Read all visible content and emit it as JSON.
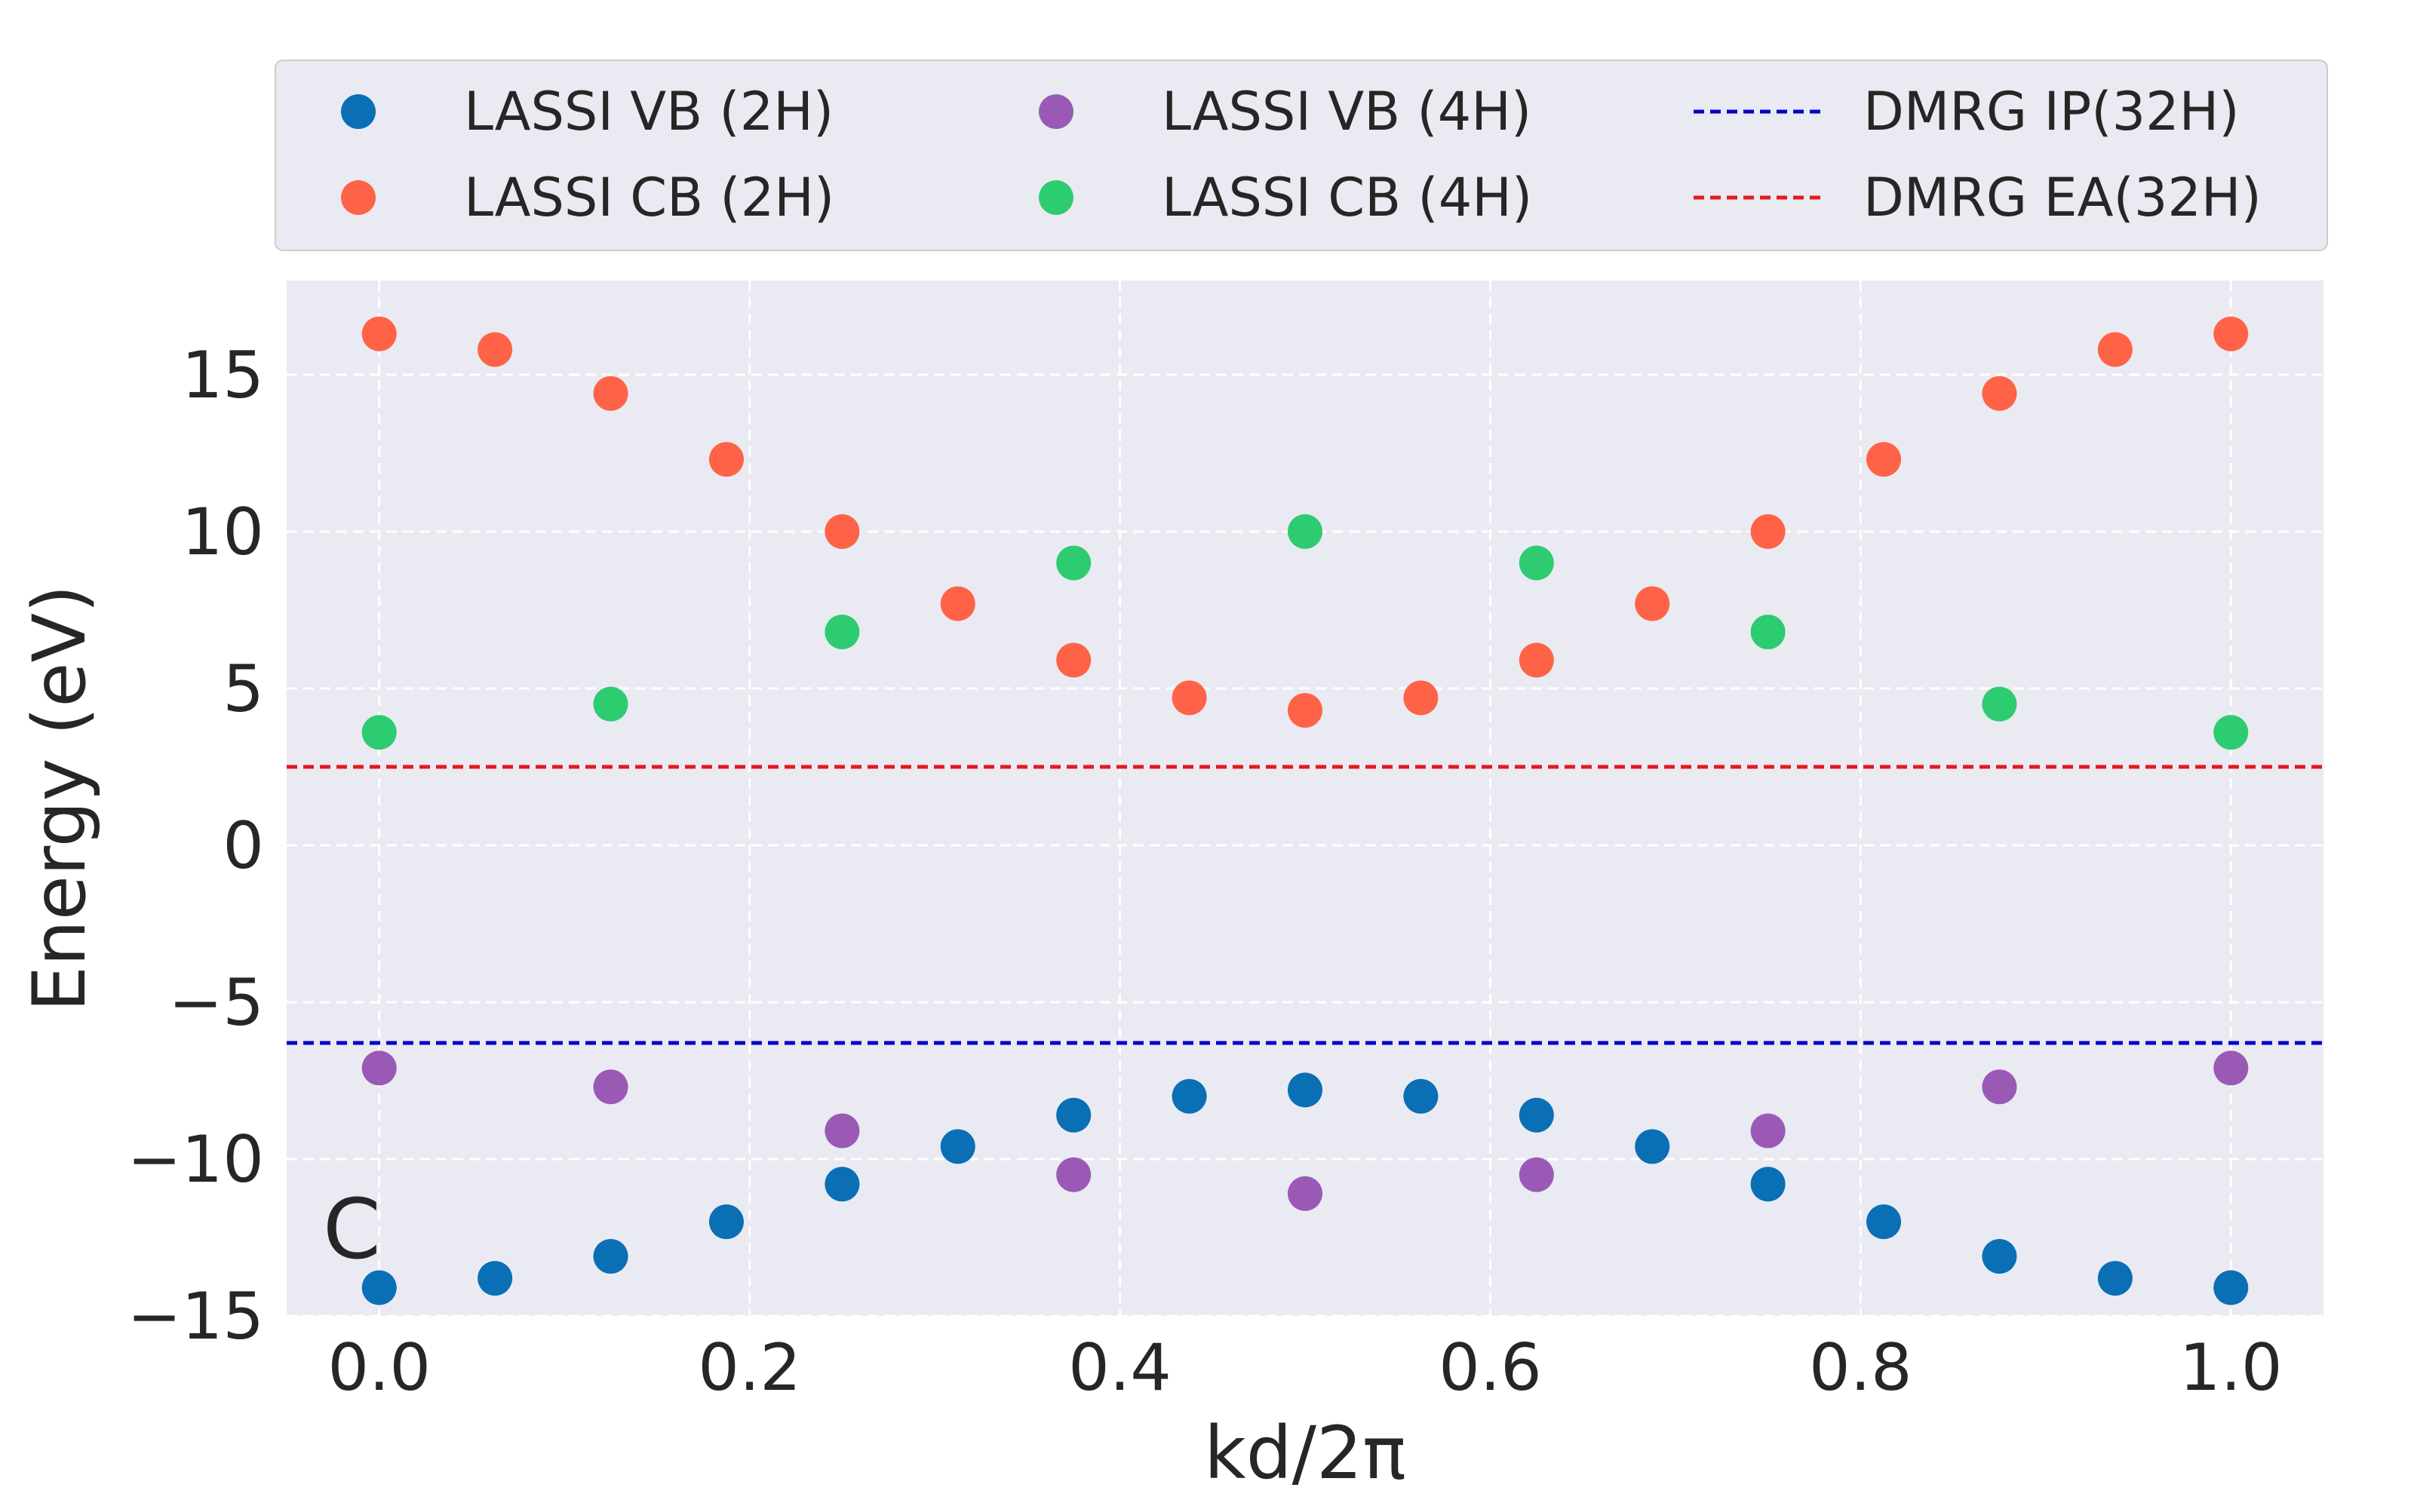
{
  "chart_data": {
    "type": "scatter",
    "xlabel": "kd/2π",
    "ylabel": "Energy (eV)",
    "xlim": [
      -0.05,
      1.05
    ],
    "ylim": [
      -15,
      18
    ],
    "x_ticks": [
      0.0,
      0.2,
      0.4,
      0.6,
      0.8,
      1.0
    ],
    "x_tick_labels": [
      "0.0",
      "0.2",
      "0.4",
      "0.6",
      "0.8",
      "1.0"
    ],
    "y_ticks": [
      -15,
      -10,
      -5,
      0,
      5,
      10,
      15
    ],
    "y_tick_labels": [
      "−15",
      "−10",
      "−5",
      "0",
      "5",
      "10",
      "15"
    ],
    "grid": true,
    "legend_position": "top",
    "annotation": "C",
    "series": [
      {
        "name": "LASSI VB (2H)",
        "kind": "scatter",
        "color": "#0a6fb5",
        "x": [
          0.0,
          0.0625,
          0.125,
          0.1875,
          0.25,
          0.3125,
          0.375,
          0.4375,
          0.5,
          0.5625,
          0.625,
          0.6875,
          0.75,
          0.8125,
          0.875,
          0.9375,
          1.0
        ],
        "y": [
          -14.1,
          -13.8,
          -13.1,
          -12.0,
          -10.8,
          -9.6,
          -8.6,
          -8.0,
          -7.8,
          -8.0,
          -8.6,
          -9.6,
          -10.8,
          -12.0,
          -13.1,
          -13.8,
          -14.1
        ]
      },
      {
        "name": "LASSI CB (2H)",
        "kind": "scatter",
        "color": "#ff6347",
        "x": [
          0.0,
          0.0625,
          0.125,
          0.1875,
          0.25,
          0.3125,
          0.375,
          0.4375,
          0.5,
          0.5625,
          0.625,
          0.6875,
          0.75,
          0.8125,
          0.875,
          0.9375,
          1.0
        ],
        "y": [
          16.3,
          15.8,
          14.4,
          12.3,
          10.0,
          7.7,
          5.9,
          4.7,
          4.3,
          4.7,
          5.9,
          7.7,
          10.0,
          12.3,
          14.4,
          15.8,
          16.3
        ]
      },
      {
        "name": "LASSI VB (4H)",
        "kind": "scatter",
        "color": "#9b59b6",
        "x": [
          0.0,
          0.125,
          0.25,
          0.375,
          0.5,
          0.625,
          0.75,
          0.875,
          1.0
        ],
        "y": [
          -7.1,
          -7.7,
          -9.1,
          -10.5,
          -11.1,
          -10.5,
          -9.1,
          -7.7,
          -7.1
        ]
      },
      {
        "name": "LASSI CB (4H)",
        "kind": "scatter",
        "color": "#2ecc71",
        "x": [
          0.0,
          0.125,
          0.25,
          0.375,
          0.5,
          0.625,
          0.75,
          0.875,
          1.0
        ],
        "y": [
          3.6,
          4.5,
          6.8,
          9.0,
          10.0,
          9.0,
          6.8,
          4.5,
          3.6
        ]
      },
      {
        "name": "DMRG IP(32H)",
        "kind": "hline",
        "color": "#0000cc",
        "y": -6.3
      },
      {
        "name": "DMRG EA(32H)",
        "kind": "hline",
        "color": "#e31a1c",
        "y": 2.5
      }
    ]
  }
}
